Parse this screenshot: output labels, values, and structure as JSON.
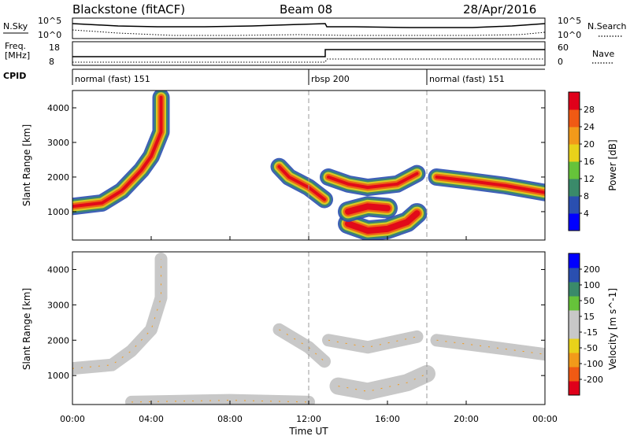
{
  "header": {
    "left_title": "Blackstone (fitACF)",
    "center_title": "Beam 08",
    "right_title": "28/Apr/2016"
  },
  "noise_panel": {
    "left_label": "N.Sky",
    "right_label": "N.Search",
    "left_ticks": [
      "10^5",
      "10^0"
    ],
    "right_ticks": [
      "10^5",
      "10^0"
    ]
  },
  "freq_panel": {
    "left_label_line1": "Freq.",
    "left_label_line2": "[MHz]",
    "left_ticks": [
      "18",
      "8"
    ],
    "right_label": "Nave",
    "right_ticks": [
      "60",
      "0"
    ]
  },
  "cpid_panel": {
    "label": "CPID",
    "modes": [
      {
        "name": "normal (fast) 151",
        "start_hour": 0
      },
      {
        "name": "rbsp 200",
        "start_hour": 12
      },
      {
        "name": "normal (fast) 151",
        "start_hour": 18
      }
    ]
  },
  "time_axis": {
    "label": "Time UT",
    "tick_labels": [
      "00:00",
      "04:00",
      "08:00",
      "12:00",
      "16:00",
      "20:00",
      "00:00"
    ],
    "tick_hours": [
      0,
      4,
      8,
      12,
      16,
      20,
      24
    ]
  },
  "chart_data": [
    {
      "type": "heatmap",
      "name": "power",
      "ylabel": "Slant Range [km]",
      "yticks": [
        1000,
        2000,
        3000,
        4000
      ],
      "ylim": [
        180,
        4500
      ],
      "xlim_hours": [
        0,
        24
      ],
      "colorbar_label": "Power [dB]",
      "colorbar_ticks": [
        "28",
        "24",
        "20",
        "16",
        "12",
        "8",
        "4"
      ],
      "colorbar_colors": [
        "#0000ff",
        "#2a4fb0",
        "#3a8a6a",
        "#66c33a",
        "#e8d21a",
        "#f29a1a",
        "#f05a14",
        "#e0001a"
      ],
      "features": [
        {
          "desc": "echo band",
          "points": [
            [
              0,
              1150
            ],
            [
              1.5,
              1250
            ],
            [
              2.5,
              1600
            ],
            [
              3.5,
              2200
            ],
            [
              4,
              2600
            ],
            [
              4.5,
              3300
            ],
            [
              4.5,
              4300
            ]
          ]
        },
        {
          "desc": "echo band",
          "points": [
            [
              10.5,
              2300
            ],
            [
              11,
              2000
            ],
            [
              12,
              1700
            ],
            [
              12.8,
              1350
            ]
          ]
        },
        {
          "desc": "echo band",
          "points": [
            [
              13,
              2000
            ],
            [
              14,
              1800
            ],
            [
              15,
              1700
            ],
            [
              16.5,
              1800
            ],
            [
              17.5,
              2100
            ]
          ]
        },
        {
          "desc": "echo band",
          "points": [
            [
              18.5,
              2000
            ],
            [
              20,
              1900
            ],
            [
              22,
              1750
            ],
            [
              24,
              1550
            ]
          ]
        },
        {
          "desc": "echo patch",
          "points": [
            [
              14,
              650
            ],
            [
              15,
              450
            ],
            [
              16,
              500
            ],
            [
              17,
              700
            ],
            [
              17.5,
              950
            ]
          ]
        },
        {
          "desc": "echo patch",
          "points": [
            [
              14,
              1000
            ],
            [
              15,
              1150
            ],
            [
              16,
              1100
            ]
          ]
        }
      ]
    },
    {
      "type": "heatmap",
      "name": "velocity",
      "ylabel": "Slant Range [km]",
      "yticks": [
        1000,
        2000,
        3000,
        4000
      ],
      "ylim": [
        180,
        4500
      ],
      "xlim_hours": [
        0,
        24
      ],
      "colorbar_label": "Velocity [m s^-1]",
      "colorbar_ticks": [
        "200",
        "100",
        "50",
        "15",
        "-15",
        "-50",
        "-100",
        "-200"
      ],
      "colorbar_colors": [
        "#e0001a",
        "#f05a14",
        "#f29a1a",
        "#e8d21a",
        "#c8c8c8",
        "#c8c8c8",
        "#66c33a",
        "#3a8a6a",
        "#2a4fb0",
        "#0000ff"
      ],
      "features": [
        {
          "desc": "echo band",
          "points": [
            [
              0,
              1200
            ],
            [
              2,
              1300
            ],
            [
              3,
              1700
            ],
            [
              4,
              2300
            ],
            [
              4.5,
              3200
            ],
            [
              4.5,
              4300
            ]
          ]
        },
        {
          "desc": "echo band",
          "points": [
            [
              10.5,
              2300
            ],
            [
              12,
              1800
            ],
            [
              12.8,
              1400
            ]
          ]
        },
        {
          "desc": "echo band",
          "points": [
            [
              13,
              2000
            ],
            [
              15,
              1800
            ],
            [
              17.5,
              2100
            ]
          ]
        },
        {
          "desc": "echo band",
          "points": [
            [
              18.5,
              2000
            ],
            [
              22,
              1750
            ],
            [
              24,
              1600
            ]
          ]
        },
        {
          "desc": "echo patch",
          "points": [
            [
              13.5,
              700
            ],
            [
              15,
              550
            ],
            [
              17,
              800
            ],
            [
              18,
              1050
            ]
          ]
        },
        {
          "desc": "echo band",
          "points": [
            [
              3,
              250
            ],
            [
              8,
              300
            ],
            [
              12,
              250
            ]
          ]
        }
      ]
    }
  ]
}
